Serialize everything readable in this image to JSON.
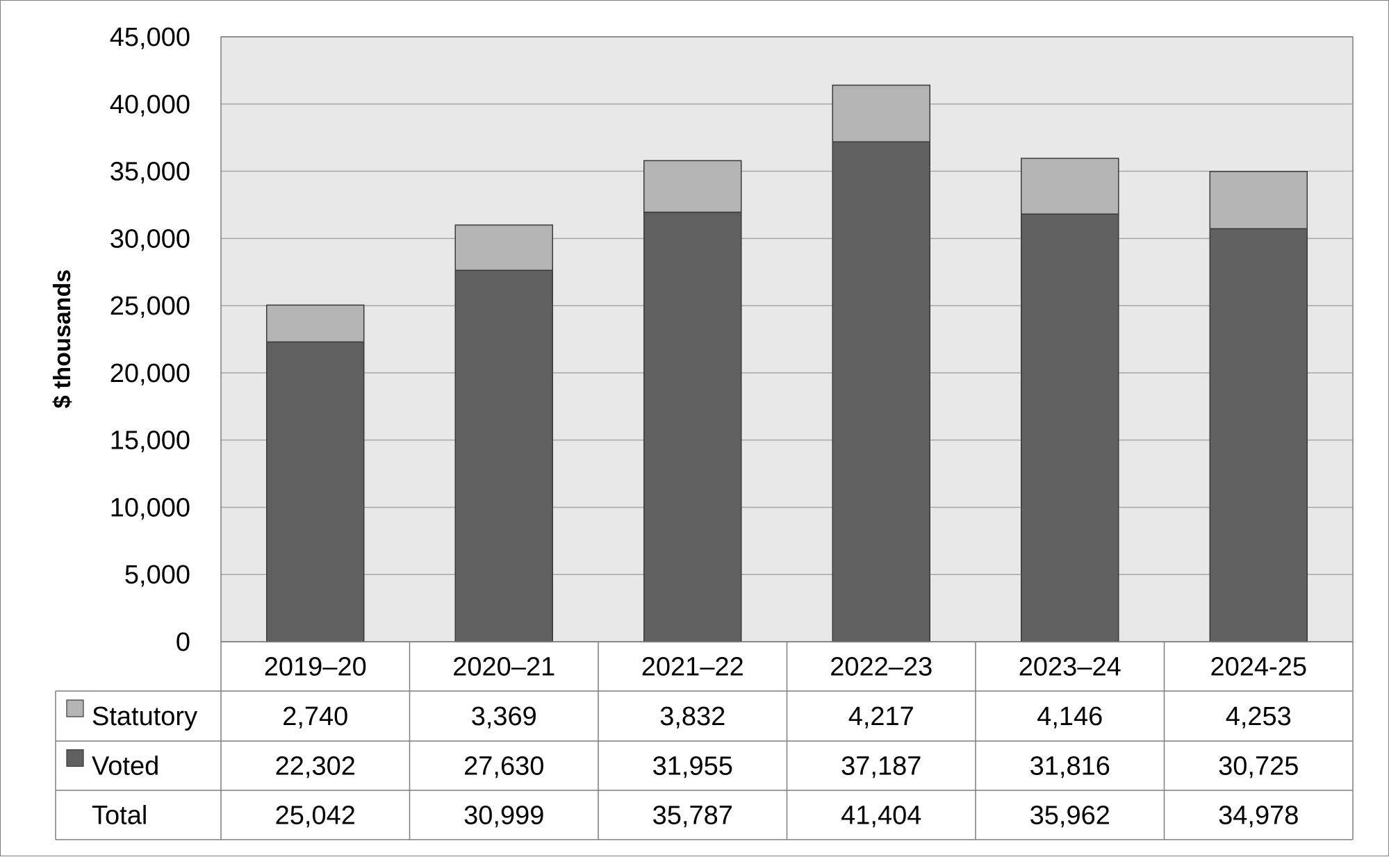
{
  "chart_data": {
    "type": "bar",
    "stacked": true,
    "ylabel": "$ thousands",
    "ylim": [
      0,
      45000
    ],
    "yticks": [
      0,
      5000,
      10000,
      15000,
      20000,
      25000,
      30000,
      35000,
      40000,
      45000
    ],
    "ytick_labels": [
      "0",
      "5,000",
      "10,000",
      "15,000",
      "20,000",
      "25,000",
      "30,000",
      "35,000",
      "40,000",
      "45,000"
    ],
    "grid": true,
    "categories": [
      "2019–20",
      "2020–21",
      "2021–22",
      "2022–23",
      "2023–24",
      "2024-25"
    ],
    "series": [
      {
        "name": "Voted",
        "color": "#606060",
        "values": [
          22302,
          27630,
          31955,
          37187,
          31816,
          30725
        ]
      },
      {
        "name": "Statutory",
        "color": "#b4b4b4",
        "values": [
          2740,
          3369,
          3832,
          4217,
          4146,
          4253
        ]
      }
    ],
    "table": {
      "rows": [
        {
          "label": "Statutory",
          "swatch": "#b4b4b4",
          "cells": [
            "2,740",
            "3,369",
            "3,832",
            "4,217",
            "4,146",
            "4,253"
          ]
        },
        {
          "label": "Voted",
          "swatch": "#606060",
          "cells": [
            "22,302",
            "27,630",
            "31,955",
            "37,187",
            "31,816",
            "30,725"
          ]
        },
        {
          "label": "Total",
          "swatch": "",
          "cells": [
            "25,042",
            "30,999",
            "35,787",
            "41,404",
            "35,962",
            "34,978"
          ]
        }
      ]
    },
    "colors": {
      "plot_bg": "#e8e8e8",
      "grid": "#a6a6a6",
      "border": "#7f7f7f"
    }
  }
}
